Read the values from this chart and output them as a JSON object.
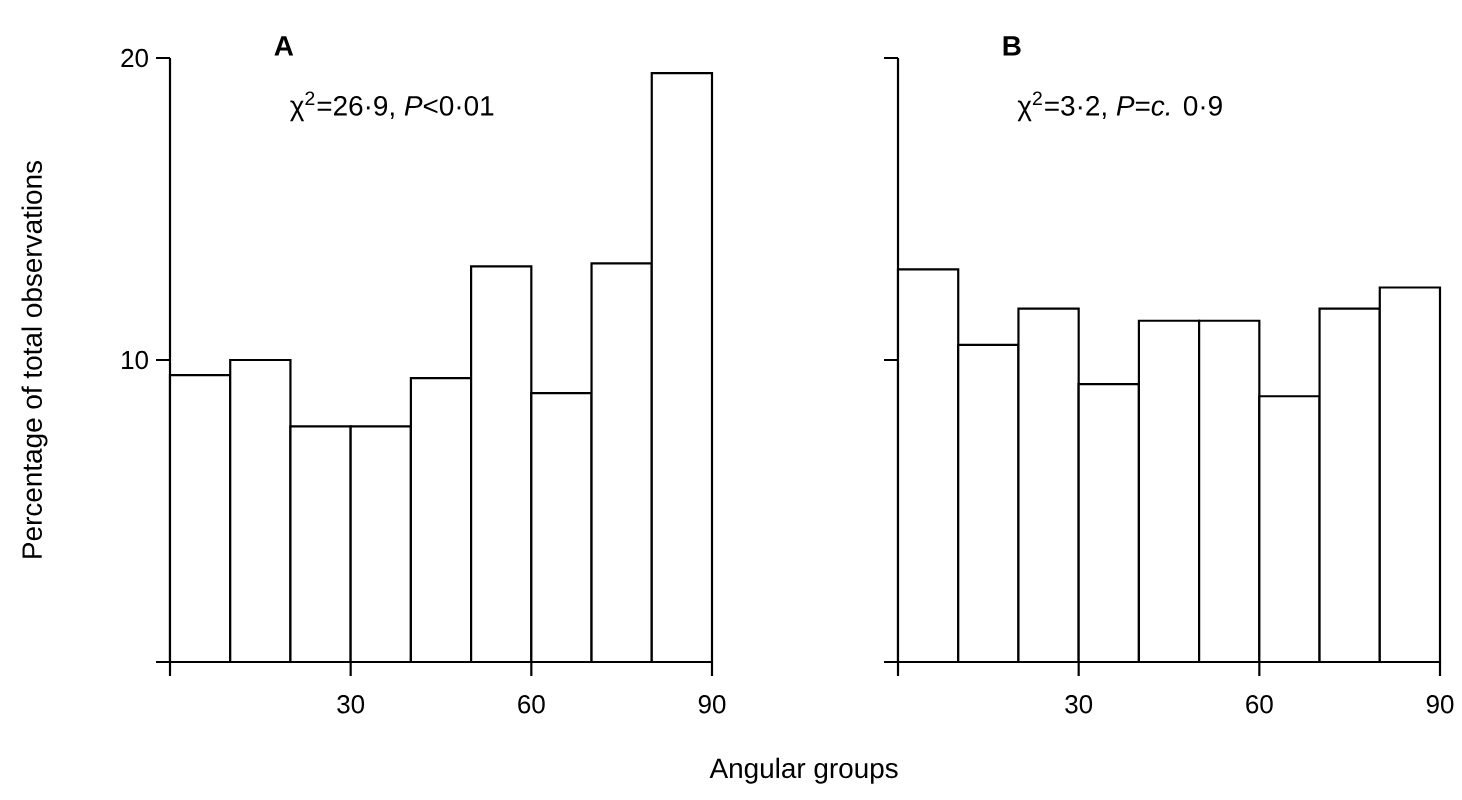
{
  "chart_data": [
    {
      "type": "histogram",
      "title": "A",
      "ylabel": "Percentage of total observations",
      "xlabel": "Angular groups",
      "annotations": [
        "χ$^{2}$=26·9, *P*<0·01"
      ],
      "bins": [
        0,
        10,
        20,
        30,
        40,
        50,
        60,
        70,
        80,
        90
      ],
      "values": [
        9.5,
        10.0,
        7.8,
        7.8,
        9.4,
        13.1,
        8.9,
        13.2,
        19.5
      ],
      "xlim": [
        0,
        90
      ],
      "ylim": [
        0,
        20
      ],
      "xticks": [
        {
          "value": 0,
          "label": null
        },
        30,
        60,
        90
      ],
      "yticks": [
        {
          "value": 0,
          "label": null
        },
        10,
        20
      ]
    },
    {
      "type": "histogram",
      "title": "B",
      "annotations": [
        "χ$^{2}$=3·2, *P*=*c.* 0·9"
      ],
      "bins": [
        0,
        10,
        20,
        30,
        40,
        50,
        60,
        70,
        80,
        90
      ],
      "values": [
        13.0,
        10.5,
        11.7,
        9.2,
        11.3,
        11.3,
        8.8,
        11.7,
        12.4
      ],
      "xlim": [
        0,
        90
      ],
      "ylim": [
        0,
        20
      ],
      "xticks": [
        {
          "value": 0,
          "label": null
        },
        30,
        60,
        90
      ],
      "yticks": [
        {
          "value": 0,
          "label": null
        },
        10,
        20
      ],
      "tick_labels": "x"
    }
  ]
}
